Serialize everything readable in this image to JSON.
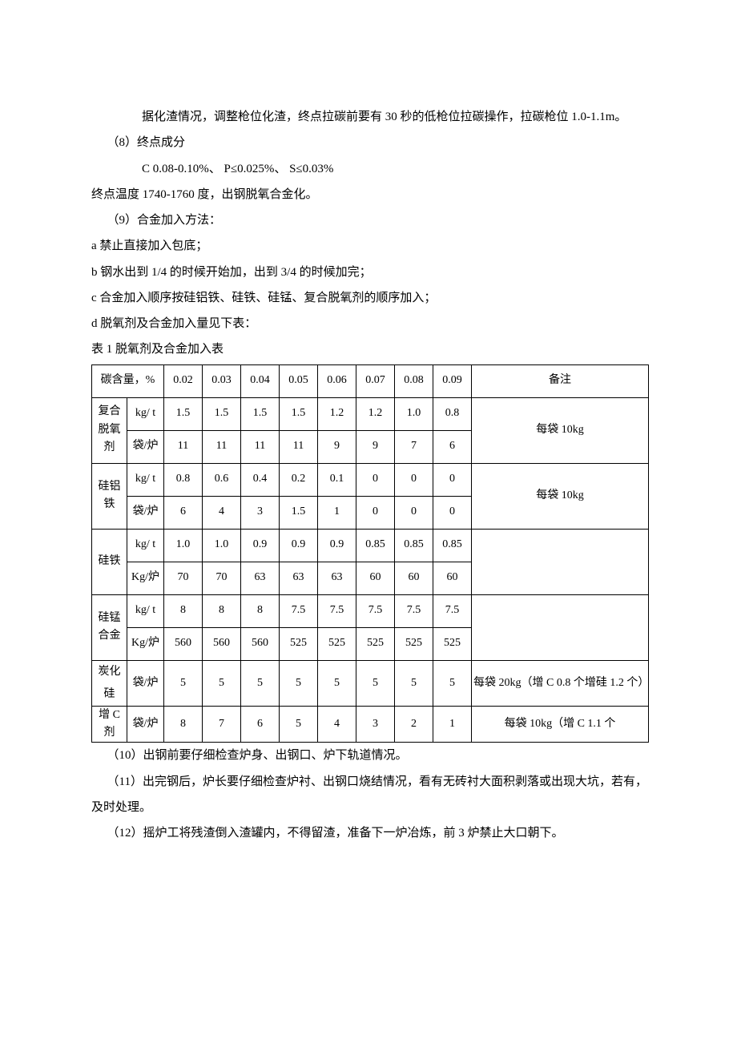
{
  "paragraphs": {
    "p1": "据化渣情况，调整枪位化渣，终点拉碳前要有 30 秒的低枪位拉碳操作，拉碳枪位 1.0-1.1m。",
    "p2": "（8）终点成分",
    "p3": "C 0.08-0.10%、  P≤0.025%、  S≤0.03%",
    "p4": "终点温度 1740-1760 度，出钢脱氧合金化。",
    "p5": "（9）合金加入方法：",
    "p6": "a 禁止直接加入包底；",
    "p7": "b 钢水出到 1/4 的时候开始加，出到 3/4 的时候加完；",
    "p8": "c 合金加入顺序按硅铝铁、硅铁、硅锰、复合脱氧剂的顺序加入；",
    "p9": "d 脱氧剂及合金加入量见下表：",
    "p10": "表 1 脱氧剂及合金加入表",
    "p11": "（10）出钢前要仔细检查炉身、出钢口、炉下轨道情况。",
    "p12": "（11）出完钢后，炉长要仔细检查炉衬、出钢口烧结情况，看有无砖衬大面积剥落或出现大坑，若有，及时处理。",
    "p13": "（12）摇炉工将残渣倒入渣罐内，不得留渣，准备下一炉冶炼，前 3 炉禁止大口朝下。"
  },
  "table": {
    "header": {
      "carbon": "碳含量，%",
      "values": [
        "0.02",
        "0.03",
        "0.04",
        "0.05",
        "0.06",
        "0.07",
        "0.08",
        "0.09"
      ],
      "note": "备注"
    },
    "rows": [
      {
        "label": "复合脱氧剂",
        "unit1": "kg/ t",
        "v1": [
          "1.5",
          "1.5",
          "1.5",
          "1.5",
          "1.2",
          "1.2",
          "1.0",
          "0.8"
        ],
        "unit2": "袋/炉",
        "v2": [
          "11",
          "11",
          "11",
          "11",
          "9",
          "9",
          "7",
          "6"
        ],
        "note": "每袋 10kg"
      },
      {
        "label": "硅铝铁",
        "unit1": "kg/ t",
        "v1": [
          "0.8",
          "0.6",
          "0.4",
          "0.2",
          "0.1",
          "0",
          "0",
          "0"
        ],
        "unit2": "袋/炉",
        "v2": [
          "6",
          "4",
          "3",
          "1.5",
          "1",
          "0",
          "0",
          "0"
        ],
        "note": "每袋 10kg"
      },
      {
        "label": "硅铁",
        "unit1": "kg/ t",
        "v1": [
          "1.0",
          "1.0",
          "0.9",
          "0.9",
          "0.9",
          "0.85",
          "0.85",
          "0.85"
        ],
        "unit2": "Kg/炉",
        "v2": [
          "70",
          "70",
          "63",
          "63",
          "63",
          "60",
          "60",
          "60"
        ],
        "note": ""
      },
      {
        "label": "硅锰合金",
        "unit1": "kg/ t",
        "v1": [
          "8",
          "8",
          "8",
          "7.5",
          "7.5",
          "7.5",
          "7.5",
          "7.5"
        ],
        "unit2": "Kg/炉",
        "v2": [
          "560",
          "560",
          "560",
          "525",
          "525",
          "525",
          "525",
          "525"
        ],
        "note": ""
      },
      {
        "label": "炭化硅",
        "unit1": "袋/炉",
        "v1": [
          "5",
          "5",
          "5",
          "5",
          "5",
          "5",
          "5",
          "5"
        ],
        "note": "每袋 20kg（增 C 0.8 个增硅 1.2 个）"
      },
      {
        "label": "增 C 剂",
        "unit1": "袋/炉",
        "v1": [
          "8",
          "7",
          "6",
          "5",
          "4",
          "3",
          "2",
          "1"
        ],
        "note": "每袋 10kg（增 C 1.1 个"
      }
    ]
  }
}
